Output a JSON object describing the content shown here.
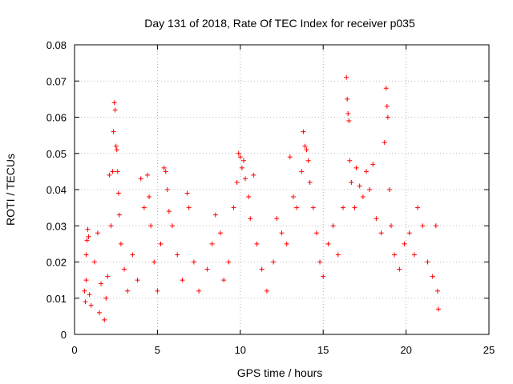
{
  "chart_data": {
    "type": "scatter",
    "title": "Day 131 of 2018, Rate Of TEC Index for receiver p035",
    "xlabel": "GPS time / hours",
    "ylabel": "ROTI / TECUs",
    "xlim": [
      0,
      25
    ],
    "ylim": [
      0,
      0.08
    ],
    "x_ticks": [
      "0",
      "5",
      "10",
      "15",
      "20",
      "25"
    ],
    "y_ticks": [
      "0",
      "0.01",
      "0.02",
      "0.03",
      "0.04",
      "0.05",
      "0.06",
      "0.07",
      "0.08"
    ],
    "grid": true,
    "marker": "+",
    "color": "#ff0000",
    "points": [
      [
        0.6,
        0.012
      ],
      [
        0.65,
        0.009
      ],
      [
        0.7,
        0.015
      ],
      [
        0.7,
        0.022
      ],
      [
        0.75,
        0.026
      ],
      [
        0.8,
        0.029
      ],
      [
        0.85,
        0.027
      ],
      [
        0.9,
        0.011
      ],
      [
        1.0,
        0.008
      ],
      [
        1.2,
        0.02
      ],
      [
        1.4,
        0.028
      ],
      [
        1.5,
        0.006
      ],
      [
        1.6,
        0.014
      ],
      [
        1.8,
        0.004
      ],
      [
        1.9,
        0.01
      ],
      [
        2.0,
        0.016
      ],
      [
        2.1,
        0.044
      ],
      [
        2.2,
        0.03
      ],
      [
        2.3,
        0.045
      ],
      [
        2.35,
        0.056
      ],
      [
        2.4,
        0.064
      ],
      [
        2.45,
        0.062
      ],
      [
        2.5,
        0.052
      ],
      [
        2.55,
        0.051
      ],
      [
        2.6,
        0.045
      ],
      [
        2.65,
        0.039
      ],
      [
        2.7,
        0.033
      ],
      [
        2.8,
        0.025
      ],
      [
        3.0,
        0.018
      ],
      [
        3.2,
        0.012
      ],
      [
        3.5,
        0.022
      ],
      [
        3.8,
        0.015
      ],
      [
        4.0,
        0.043
      ],
      [
        4.2,
        0.035
      ],
      [
        4.4,
        0.044
      ],
      [
        4.5,
        0.038
      ],
      [
        4.6,
        0.03
      ],
      [
        4.8,
        0.02
      ],
      [
        5.0,
        0.012
      ],
      [
        5.2,
        0.025
      ],
      [
        5.4,
        0.046
      ],
      [
        5.5,
        0.045
      ],
      [
        5.6,
        0.04
      ],
      [
        5.7,
        0.034
      ],
      [
        5.9,
        0.03
      ],
      [
        6.2,
        0.022
      ],
      [
        6.5,
        0.015
      ],
      [
        6.8,
        0.039
      ],
      [
        6.9,
        0.035
      ],
      [
        7.2,
        0.02
      ],
      [
        7.5,
        0.012
      ],
      [
        8.0,
        0.018
      ],
      [
        8.3,
        0.025
      ],
      [
        8.5,
        0.033
      ],
      [
        8.8,
        0.028
      ],
      [
        9.0,
        0.015
      ],
      [
        9.3,
        0.02
      ],
      [
        9.6,
        0.035
      ],
      [
        9.8,
        0.042
      ],
      [
        9.9,
        0.05
      ],
      [
        10.0,
        0.049
      ],
      [
        10.1,
        0.046
      ],
      [
        10.2,
        0.048
      ],
      [
        10.3,
        0.043
      ],
      [
        10.5,
        0.038
      ],
      [
        10.6,
        0.032
      ],
      [
        10.8,
        0.044
      ],
      [
        11.0,
        0.025
      ],
      [
        11.3,
        0.018
      ],
      [
        11.6,
        0.012
      ],
      [
        12.0,
        0.02
      ],
      [
        12.2,
        0.032
      ],
      [
        12.5,
        0.028
      ],
      [
        12.8,
        0.025
      ],
      [
        13.0,
        0.049
      ],
      [
        13.2,
        0.038
      ],
      [
        13.4,
        0.035
      ],
      [
        13.7,
        0.045
      ],
      [
        13.8,
        0.056
      ],
      [
        13.9,
        0.052
      ],
      [
        14.0,
        0.051
      ],
      [
        14.1,
        0.048
      ],
      [
        14.2,
        0.042
      ],
      [
        14.4,
        0.035
      ],
      [
        14.6,
        0.028
      ],
      [
        14.8,
        0.02
      ],
      [
        15.0,
        0.016
      ],
      [
        15.3,
        0.025
      ],
      [
        15.6,
        0.03
      ],
      [
        15.9,
        0.022
      ],
      [
        16.2,
        0.035
      ],
      [
        16.4,
        0.071
      ],
      [
        16.45,
        0.065
      ],
      [
        16.5,
        0.061
      ],
      [
        16.55,
        0.059
      ],
      [
        16.6,
        0.048
      ],
      [
        16.7,
        0.042
      ],
      [
        16.9,
        0.035
      ],
      [
        17.0,
        0.046
      ],
      [
        17.2,
        0.041
      ],
      [
        17.4,
        0.038
      ],
      [
        17.6,
        0.045
      ],
      [
        17.8,
        0.04
      ],
      [
        18.0,
        0.047
      ],
      [
        18.2,
        0.032
      ],
      [
        18.5,
        0.028
      ],
      [
        18.7,
        0.053
      ],
      [
        18.8,
        0.068
      ],
      [
        18.85,
        0.063
      ],
      [
        18.9,
        0.06
      ],
      [
        19.0,
        0.04
      ],
      [
        19.1,
        0.03
      ],
      [
        19.3,
        0.022
      ],
      [
        19.6,
        0.018
      ],
      [
        19.9,
        0.025
      ],
      [
        20.2,
        0.028
      ],
      [
        20.5,
        0.022
      ],
      [
        20.7,
        0.035
      ],
      [
        21.0,
        0.03
      ],
      [
        21.3,
        0.02
      ],
      [
        21.6,
        0.016
      ],
      [
        21.8,
        0.03
      ],
      [
        21.9,
        0.012
      ],
      [
        21.95,
        0.007
      ]
    ]
  }
}
